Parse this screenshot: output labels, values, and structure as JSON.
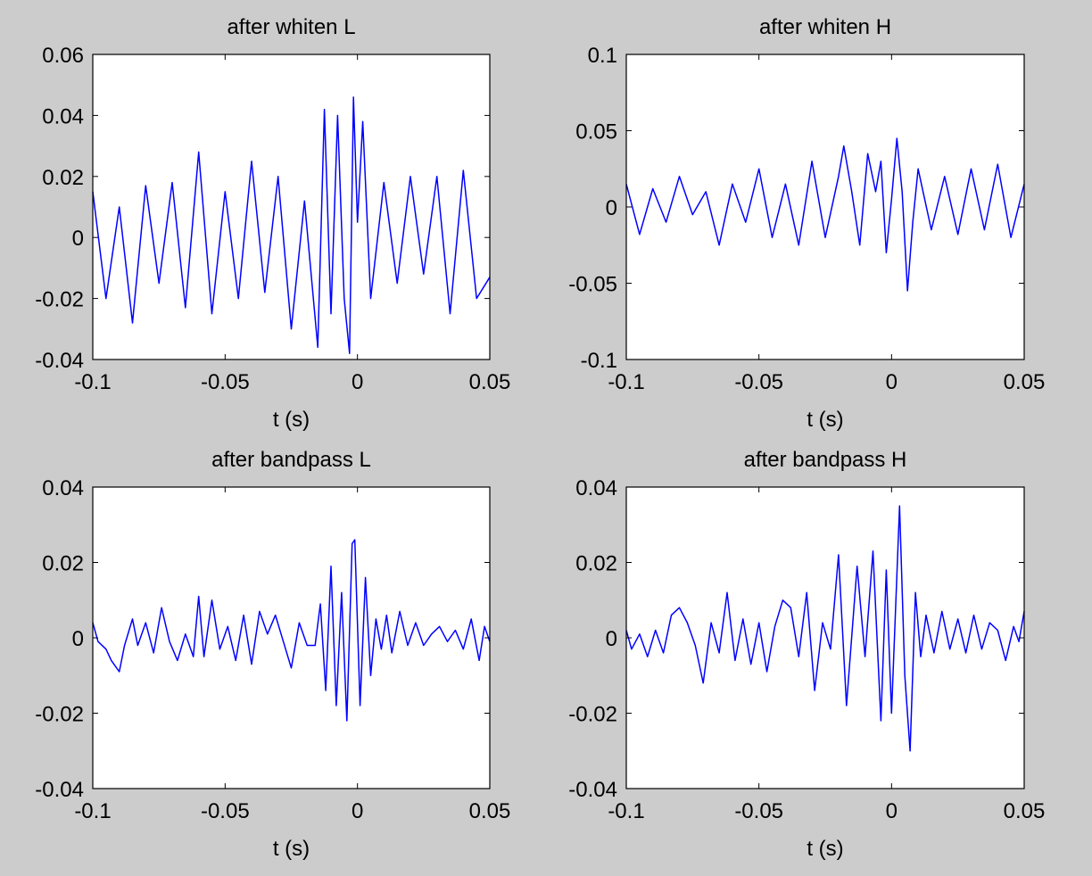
{
  "figure": {
    "background": "#cccccc",
    "line_color": "#0000ff"
  },
  "chart_data": [
    {
      "type": "line",
      "title": "after whiten L",
      "xlabel": "t (s)",
      "ylabel": "",
      "xlim": [
        -0.1,
        0.05
      ],
      "ylim": [
        -0.04,
        0.06
      ],
      "xticks": [
        -0.1,
        -0.05,
        0,
        0.05
      ],
      "xtick_labels": [
        "-0.1",
        "-0.05",
        "0",
        "0.05"
      ],
      "yticks": [
        -0.04,
        -0.02,
        0,
        0.02,
        0.04,
        0.06
      ],
      "ytick_labels": [
        "-0.04",
        "-0.02",
        "0",
        "0.02",
        "0.04",
        "0.06"
      ],
      "grid": false,
      "series": [
        {
          "color": "#0000ff",
          "x": [
            -0.1,
            -0.095,
            -0.09,
            -0.085,
            -0.08,
            -0.075,
            -0.07,
            -0.065,
            -0.06,
            -0.055,
            -0.05,
            -0.045,
            -0.04,
            -0.035,
            -0.03,
            -0.025,
            -0.02,
            -0.015,
            -0.0125,
            -0.01,
            -0.0075,
            -0.005,
            -0.003,
            -0.0015,
            0,
            0.002,
            0.005,
            0.01,
            0.015,
            0.02,
            0.025,
            0.03,
            0.035,
            0.04,
            0.045,
            0.05
          ],
          "y": [
            0.015,
            -0.02,
            0.01,
            -0.028,
            0.017,
            -0.015,
            0.018,
            -0.023,
            0.028,
            -0.025,
            0.015,
            -0.02,
            0.025,
            -0.018,
            0.02,
            -0.03,
            0.012,
            -0.036,
            0.042,
            -0.025,
            0.04,
            -0.02,
            -0.038,
            0.046,
            0.005,
            0.038,
            -0.02,
            0.018,
            -0.015,
            0.02,
            -0.012,
            0.02,
            -0.025,
            0.022,
            -0.02,
            -0.013
          ]
        }
      ]
    },
    {
      "type": "line",
      "title": "after whiten H",
      "xlabel": "t (s)",
      "ylabel": "",
      "xlim": [
        -0.1,
        0.05
      ],
      "ylim": [
        -0.1,
        0.1
      ],
      "xticks": [
        -0.1,
        -0.05,
        0,
        0.05
      ],
      "xtick_labels": [
        "-0.1",
        "-0.05",
        "0",
        "0.05"
      ],
      "yticks": [
        -0.1,
        -0.05,
        0,
        0.05,
        0.1
      ],
      "ytick_labels": [
        "-0.1",
        "-0.05",
        "0",
        "0.05",
        "0.1"
      ],
      "grid": false,
      "series": [
        {
          "color": "#0000ff",
          "x": [
            -0.1,
            -0.095,
            -0.09,
            -0.085,
            -0.08,
            -0.075,
            -0.07,
            -0.065,
            -0.06,
            -0.055,
            -0.05,
            -0.045,
            -0.04,
            -0.035,
            -0.03,
            -0.025,
            -0.02,
            -0.018,
            -0.015,
            -0.012,
            -0.009,
            -0.006,
            -0.004,
            -0.002,
            0,
            0.002,
            0.004,
            0.006,
            0.008,
            0.01,
            0.015,
            0.02,
            0.025,
            0.03,
            0.035,
            0.04,
            0.045,
            0.05
          ],
          "y": [
            0.015,
            -0.018,
            0.012,
            -0.01,
            0.02,
            -0.005,
            0.01,
            -0.025,
            0.015,
            -0.01,
            0.025,
            -0.02,
            0.015,
            -0.025,
            0.03,
            -0.02,
            0.02,
            0.04,
            0.01,
            -0.025,
            0.035,
            0.01,
            0.03,
            -0.03,
            0.005,
            0.045,
            0.01,
            -0.055,
            -0.01,
            0.025,
            -0.015,
            0.02,
            -0.018,
            0.025,
            -0.015,
            0.028,
            -0.02,
            0.015
          ]
        }
      ]
    },
    {
      "type": "line",
      "title": "after bandpass L",
      "xlabel": "t (s)",
      "ylabel": "",
      "xlim": [
        -0.1,
        0.05
      ],
      "ylim": [
        -0.04,
        0.04
      ],
      "xticks": [
        -0.1,
        -0.05,
        0,
        0.05
      ],
      "xtick_labels": [
        "-0.1",
        "-0.05",
        "0",
        "0.05"
      ],
      "yticks": [
        -0.04,
        -0.02,
        0,
        0.02,
        0.04
      ],
      "ytick_labels": [
        "-0.04",
        "-0.02",
        "0",
        "0.02",
        "0.04"
      ],
      "grid": false,
      "series": [
        {
          "color": "#0000ff",
          "x": [
            -0.1,
            -0.098,
            -0.095,
            -0.093,
            -0.09,
            -0.088,
            -0.085,
            -0.083,
            -0.08,
            -0.077,
            -0.074,
            -0.071,
            -0.068,
            -0.065,
            -0.062,
            -0.06,
            -0.058,
            -0.055,
            -0.052,
            -0.049,
            -0.046,
            -0.043,
            -0.04,
            -0.037,
            -0.034,
            -0.031,
            -0.028,
            -0.025,
            -0.022,
            -0.019,
            -0.016,
            -0.014,
            -0.012,
            -0.01,
            -0.008,
            -0.006,
            -0.004,
            -0.002,
            -0.001,
            0.001,
            0.003,
            0.005,
            0.007,
            0.009,
            0.011,
            0.013,
            0.016,
            0.019,
            0.022,
            0.025,
            0.028,
            0.031,
            0.034,
            0.037,
            0.04,
            0.043,
            0.046,
            0.048,
            0.05
          ],
          "y": [
            0.004,
            -0.001,
            -0.003,
            -0.006,
            -0.009,
            -0.002,
            0.005,
            -0.002,
            0.004,
            -0.004,
            0.008,
            -0.001,
            -0.006,
            0.001,
            -0.005,
            0.011,
            -0.005,
            0.01,
            -0.003,
            0.003,
            -0.006,
            0.006,
            -0.007,
            0.007,
            0.001,
            0.006,
            -0.001,
            -0.008,
            0.004,
            -0.002,
            -0.002,
            0.009,
            -0.014,
            0.019,
            -0.018,
            0.012,
            -0.022,
            0.025,
            0.026,
            -0.018,
            0.016,
            -0.01,
            0.005,
            -0.003,
            0.006,
            -0.004,
            0.007,
            -0.002,
            0.004,
            -0.002,
            0.001,
            0.003,
            -0.001,
            0.002,
            -0.003,
            0.005,
            -0.006,
            0.003,
            -0.001
          ]
        }
      ]
    },
    {
      "type": "line",
      "title": "after bandpass H",
      "xlabel": "t (s)",
      "ylabel": "",
      "xlim": [
        -0.1,
        0.05
      ],
      "ylim": [
        -0.04,
        0.04
      ],
      "xticks": [
        -0.1,
        -0.05,
        0,
        0.05
      ],
      "xtick_labels": [
        "-0.1",
        "-0.05",
        "0",
        "0.05"
      ],
      "yticks": [
        -0.04,
        -0.02,
        0,
        0.02,
        0.04
      ],
      "ytick_labels": [
        "-0.04",
        "-0.02",
        "0",
        "0.02",
        "0.04"
      ],
      "grid": false,
      "series": [
        {
          "color": "#0000ff",
          "x": [
            -0.1,
            -0.098,
            -0.095,
            -0.092,
            -0.089,
            -0.086,
            -0.083,
            -0.08,
            -0.077,
            -0.074,
            -0.071,
            -0.068,
            -0.065,
            -0.062,
            -0.059,
            -0.056,
            -0.053,
            -0.05,
            -0.047,
            -0.044,
            -0.041,
            -0.038,
            -0.035,
            -0.032,
            -0.029,
            -0.026,
            -0.023,
            -0.02,
            -0.017,
            -0.013,
            -0.01,
            -0.007,
            -0.004,
            -0.002,
            0,
            0.003,
            0.005,
            0.007,
            0.009,
            0.011,
            0.013,
            0.016,
            0.019,
            0.022,
            0.025,
            0.028,
            0.031,
            0.034,
            0.037,
            0.04,
            0.043,
            0.046,
            0.048,
            0.05
          ],
          "y": [
            0.002,
            -0.003,
            0.001,
            -0.005,
            0.002,
            -0.004,
            0.006,
            0.008,
            0.004,
            -0.002,
            -0.012,
            0.004,
            -0.004,
            0.012,
            -0.006,
            0.005,
            -0.007,
            0.004,
            -0.009,
            0.003,
            0.01,
            0.008,
            -0.005,
            0.012,
            -0.014,
            0.004,
            -0.003,
            0.022,
            -0.018,
            0.019,
            -0.005,
            0.023,
            -0.022,
            0.018,
            -0.02,
            0.035,
            -0.01,
            -0.03,
            0.012,
            -0.005,
            0.006,
            -0.004,
            0.007,
            -0.003,
            0.005,
            -0.004,
            0.006,
            -0.003,
            0.004,
            0.002,
            -0.006,
            0.003,
            -0.001,
            0.007
          ]
        }
      ]
    }
  ]
}
